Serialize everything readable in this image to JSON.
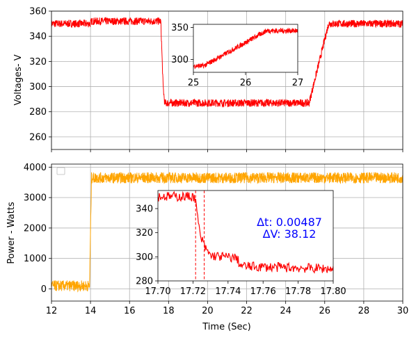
{
  "chart_data": [
    {
      "type": "line",
      "ylabel": "Voltages- V",
      "xlim": [
        12,
        30
      ],
      "ylim": [
        250,
        360
      ],
      "xticks": [
        12,
        14,
        16,
        18,
        20,
        22,
        24,
        26,
        28,
        30
      ],
      "yticks": [
        "260",
        "280",
        "300",
        "320",
        "340",
        "360"
      ],
      "grid": true,
      "series": [
        {
          "color": "#ff0000",
          "x": [
            12,
            14,
            14.05,
            17.6,
            17.72,
            17.8,
            25.2,
            26.2,
            30
          ],
          "y": [
            350,
            350,
            352,
            352,
            300,
            287,
            287,
            350,
            350
          ]
        }
      ],
      "inset": {
        "xlim": [
          25,
          27
        ],
        "ylim": [
          280,
          355
        ],
        "xticks": [
          "25",
          "26",
          "27"
        ],
        "yticks": [
          "300",
          "350"
        ],
        "series": [
          {
            "color": "#ff0000",
            "x": [
              25,
              25.2,
              26.4,
              27
            ],
            "y": [
              290,
              290,
              345,
              345
            ]
          }
        ]
      }
    },
    {
      "type": "line",
      "xlabel": "Time (Sec)",
      "ylabel": "Power - Watts",
      "xlim": [
        12,
        30
      ],
      "ylim": [
        -400,
        4100
      ],
      "xticks": [
        "12",
        "14",
        "16",
        "18",
        "20",
        "22",
        "24",
        "26",
        "28",
        "30"
      ],
      "yticks": [
        "0",
        "1000",
        "2000",
        "3000",
        "4000"
      ],
      "grid": true,
      "legend": "top-left",
      "series": [
        {
          "color": "#ffa500",
          "x": [
            12,
            13.95,
            14.05,
            30
          ],
          "y": [
            100,
            100,
            3650,
            3650
          ]
        }
      ],
      "inset": {
        "xlim": [
          17.7,
          17.8
        ],
        "ylim": [
          280,
          355
        ],
        "xticks": [
          "17.70",
          "17.72",
          "17.74",
          "17.76",
          "17.78",
          "17.80"
        ],
        "yticks": [
          "280",
          "300",
          "320",
          "340"
        ],
        "vlines": [
          17.7215,
          17.7264
        ],
        "annotation": [
          "Δt: 0.00487",
          "ΔV: 38.12"
        ],
        "series": [
          {
            "color": "#ff0000",
            "x": [
              17.7,
              17.721,
              17.7225,
              17.724,
              17.727,
              17.73,
              17.745,
              17.747,
              17.75,
              17.8
            ],
            "y": [
              350,
              350,
              335,
              318,
              307,
              301,
              299,
              293,
              292,
              290
            ]
          }
        ]
      }
    }
  ]
}
